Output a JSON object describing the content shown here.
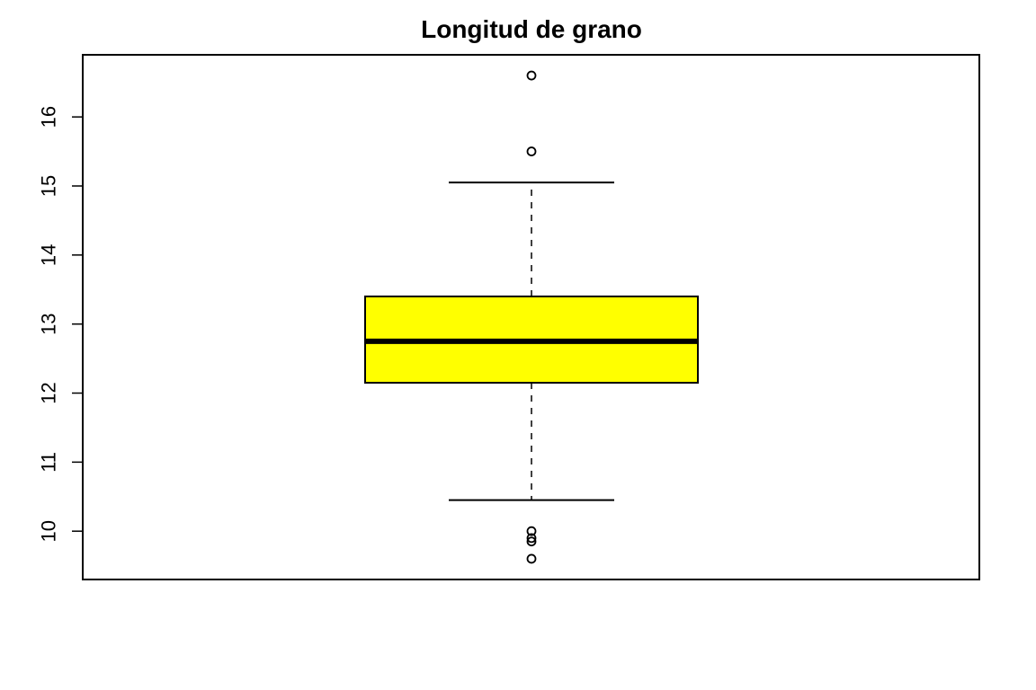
{
  "chart_data": {
    "type": "boxplot",
    "title": "Longitud de grano",
    "xlabel": "",
    "ylabel": "",
    "ylim": [
      9.3,
      16.9
    ],
    "y_ticks": [
      10,
      11,
      12,
      13,
      14,
      15,
      16
    ],
    "y_tick_labels": [
      "10",
      "11",
      "12",
      "13",
      "14",
      "15",
      "16"
    ],
    "grid": false,
    "orientation": "vertical",
    "box": {
      "whisker_low": 10.45,
      "q1": 12.15,
      "median": 12.75,
      "q3": 13.4,
      "whisker_high": 15.05,
      "outliers": [
        16.6,
        15.5,
        10.0,
        9.9,
        9.85,
        9.6
      ],
      "fill_color": "#ffff00",
      "line_color": "#000000"
    }
  }
}
